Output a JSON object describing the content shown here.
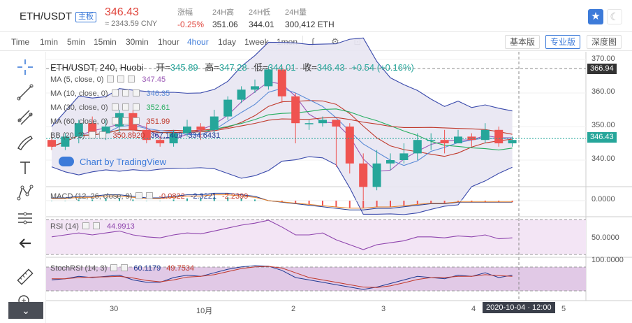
{
  "header": {
    "pair": "ETH/USDT",
    "board": "主板",
    "price": "346.43",
    "cny": "≈ 2343.59 CNY",
    "stats": [
      {
        "label": "涨幅",
        "value": "-0.25%",
        "red": true
      },
      {
        "label": "24H高",
        "value": "351.06"
      },
      {
        "label": "24H低",
        "value": "344.01"
      },
      {
        "label": "24H量",
        "value": "300,412 ETH"
      }
    ],
    "star_icon": "star-icon",
    "theme_icon": "moon-icon"
  },
  "toolbar": {
    "intervals": [
      "Time",
      "1min",
      "5min",
      "15min",
      "30min",
      "1hour",
      "4hour",
      "1day",
      "1week",
      "1mon"
    ],
    "active_interval": "4hour",
    "tool_icons": [
      "indicator-icon",
      "settings-icon",
      "screenshot-icon"
    ],
    "views": [
      "基本版",
      "专业版",
      "深度图"
    ],
    "active_view": "专业版"
  },
  "left_tools": [
    "crosshair-icon",
    "trend-line-icon",
    "fib-icon",
    "brush-icon",
    "text-icon",
    "pattern-icon",
    "measure-icon",
    "back-icon",
    "ruler-icon",
    "zoom-icon"
  ],
  "chart": {
    "ohlc": {
      "symbol": "ETH/USDT, 240, Huobi",
      "o_label": "开=",
      "o": "345.89",
      "h_label": "高=",
      "h": "347.28",
      "l_label": "低=",
      "l": "344.01",
      "c_label": "收=",
      "c": "346.43",
      "chg": "+0.54 (+0.16%)"
    },
    "indicators": [
      {
        "label": "MA (5, close, 0)",
        "value": "347.45",
        "color": "#9b59b6"
      },
      {
        "label": "MA (10, close, 0)",
        "value": "346.35",
        "color": "#5b8bd6"
      },
      {
        "label": "MA (30, close, 0)",
        "value": "352.61",
        "color": "#27ae60"
      },
      {
        "label": "MA (60, close, 0)",
        "value": "351.99",
        "color": "#c0392b"
      },
      {
        "label": "BB (20, 2)",
        "value": "350.8920",
        "value2": "367.1409",
        "value3": "334.6431",
        "color": "#c0392b"
      }
    ],
    "watermark": "Chart by TradingView",
    "macd": {
      "label": "MACD (12, 26, close, 9)",
      "v1": "-0.0822",
      "v2": "-2.3221",
      "v3": "-2.2399"
    },
    "rsi": {
      "label": "RSI (14)",
      "value": "44.9913"
    },
    "stoch": {
      "label": "StochRSI (14, 3)",
      "v1": "60.1179",
      "v2": "49.7534"
    },
    "y_labels": [
      "370.00",
      "360.00",
      "350.00",
      "340.00"
    ],
    "y_tag_high": "366.94",
    "y_tag_last": "346.43",
    "macd_y": "0.0000",
    "rsi_y": "50.0000",
    "stoch_y": "100.0000",
    "x_labels": [
      "30",
      "10月",
      "2",
      "3",
      "4",
      "5"
    ],
    "crosshair_time": "2020-10-04 · 12:00",
    "colors": {
      "up": "#26a69a",
      "down": "#ef5350",
      "bb_fill": "#e8e6f2"
    }
  },
  "chart_data": {
    "type": "candlestick",
    "series": [
      {
        "name": "ETH/USDT",
        "ohlc": [
          [
            346,
            344,
            347,
            343
          ],
          [
            344,
            347,
            348,
            343
          ],
          [
            347,
            351,
            352,
            345
          ],
          [
            351,
            348,
            353,
            347
          ],
          [
            348,
            350,
            352,
            346
          ],
          [
            350,
            354,
            355,
            348
          ],
          [
            354,
            349,
            355,
            347
          ],
          [
            349,
            346,
            351,
            345
          ],
          [
            346,
            345,
            347,
            344
          ],
          [
            345,
            348,
            349,
            344
          ],
          [
            348,
            350,
            352,
            347
          ],
          [
            350,
            349,
            351,
            346
          ],
          [
            349,
            353,
            355,
            348
          ],
          [
            353,
            358,
            359,
            352
          ],
          [
            358,
            361,
            362,
            357
          ],
          [
            361,
            362,
            364,
            360
          ],
          [
            362,
            367,
            368,
            361
          ],
          [
            367,
            359,
            368,
            357
          ],
          [
            359,
            351,
            360,
            345
          ],
          [
            351,
            351,
            352,
            349
          ],
          [
            351,
            352,
            353,
            350
          ],
          [
            352,
            350,
            352,
            338
          ],
          [
            350,
            339,
            351,
            336
          ],
          [
            339,
            332,
            342,
            328
          ],
          [
            332,
            339,
            343,
            331
          ],
          [
            339,
            340,
            342,
            337
          ],
          [
            340,
            342,
            345,
            339
          ],
          [
            342,
            346,
            348,
            340
          ],
          [
            346,
            346,
            348,
            343
          ],
          [
            346,
            345,
            349,
            342
          ],
          [
            345,
            347,
            349,
            345
          ],
          [
            347,
            346,
            348,
            344
          ],
          [
            346,
            349,
            351,
            345
          ],
          [
            349,
            345,
            350,
            344
          ],
          [
            345,
            346,
            347,
            344
          ]
        ]
      }
    ]
  }
}
